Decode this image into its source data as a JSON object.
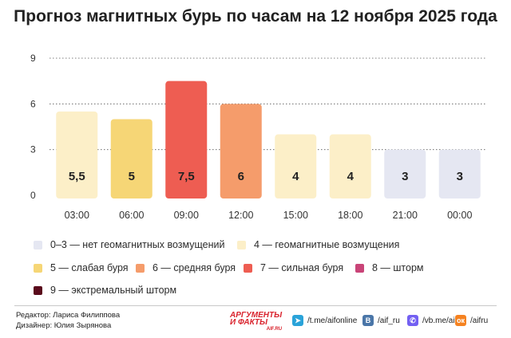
{
  "title": "Прогноз магнитных бурь по часам на 12 ноября 2025 года",
  "chart_data": {
    "type": "bar",
    "title": "Прогноз магнитных бурь по часам на 12 ноября 2025 года",
    "categories": [
      "03:00",
      "06:00",
      "09:00",
      "12:00",
      "15:00",
      "18:00",
      "21:00",
      "00:00"
    ],
    "values": [
      5.5,
      5,
      7.5,
      6,
      4,
      4,
      3,
      3
    ],
    "value_labels": [
      "5,5",
      "5",
      "7,5",
      "6",
      "4",
      "4",
      "3",
      "3"
    ],
    "bar_colors": [
      "#fcefc8",
      "#f6d676",
      "#ee5d52",
      "#f59c6b",
      "#fcefc8",
      "#fcefc8",
      "#e5e7f2",
      "#e5e7f2"
    ],
    "label_colors": [
      "#222222",
      "#222222",
      "#222222",
      "#222222",
      "#222222",
      "#222222",
      "#222222",
      "#222222"
    ],
    "yticks": [
      0,
      3,
      6,
      9
    ],
    "ylim": [
      0,
      9
    ],
    "grid": true,
    "legend_position": "bottom",
    "xlabel": "",
    "ylabel": ""
  },
  "legend": [
    {
      "label": "0–3 — нет геомагнитных возмущений",
      "color": "#e5e7f2"
    },
    {
      "label": "4 — геомагнитные возмущения",
      "color": "#fcefc8"
    },
    {
      "label": "5 — слабая буря",
      "color": "#f6d676"
    },
    {
      "label": "6 — средняя буря",
      "color": "#f59c6b"
    },
    {
      "label": "7 — сильная буря",
      "color": "#ee5d52"
    },
    {
      "label": "8 — шторм",
      "color": "#c94478"
    },
    {
      "label": "9 — экстремальный шторм",
      "color": "#5a0a1c"
    }
  ],
  "footer": {
    "editor": "Редактор: Лариса Филиппова",
    "designer": "Дизайнер: Юлия Зырянова",
    "brand_line1": "АРГУМЕНТЫ",
    "brand_line2": "И ФАКТЫ",
    "brand_sub": "AIF.RU",
    "socials": [
      {
        "icon": "telegram-icon",
        "glyph": "➤",
        "color": "#2aa3d9",
        "text": "/t.me/aifonline"
      },
      {
        "icon": "vk-icon",
        "glyph": "В",
        "color": "#4a76a8",
        "text": "/aif_ru"
      },
      {
        "icon": "viber-icon",
        "glyph": "✆",
        "color": "#7360f2",
        "text": "/vb.me/aif"
      },
      {
        "icon": "odnoklassniki-icon",
        "glyph": "ок",
        "color": "#f58220",
        "text": "/aifru"
      }
    ]
  }
}
